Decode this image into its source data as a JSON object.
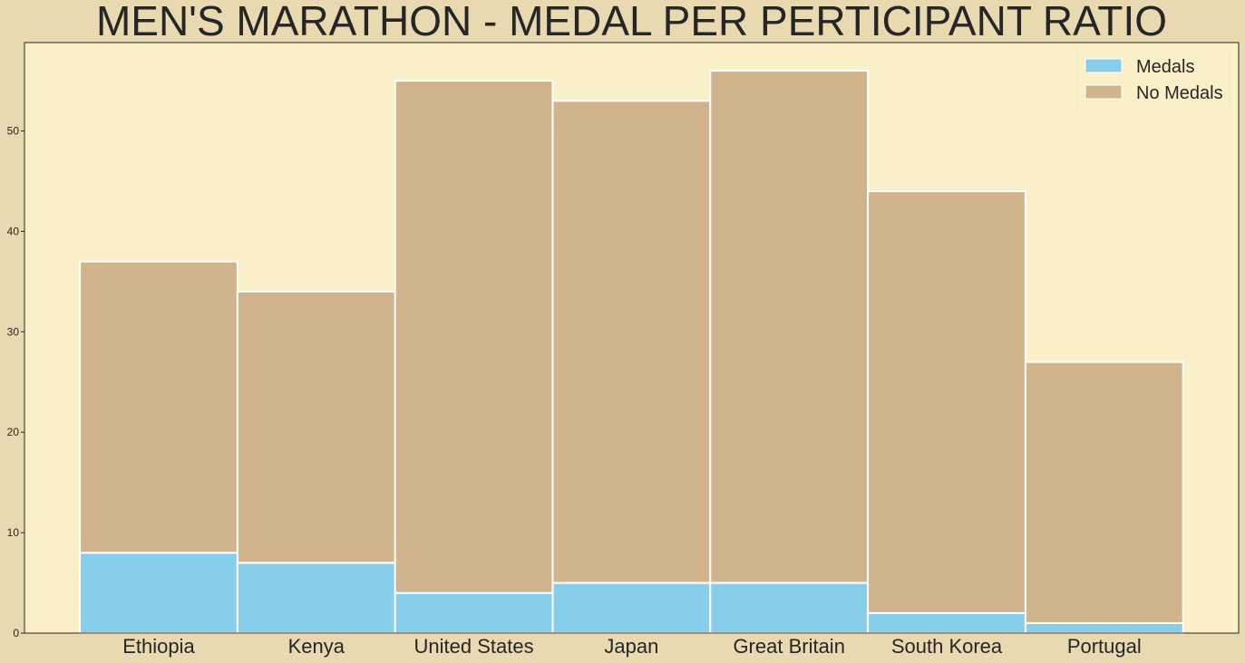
{
  "chart_data": {
    "type": "bar",
    "stacked": true,
    "title": "MEN'S MARATHON - MEDAL PER PERTICIPANT RATIO",
    "xlabel": "",
    "ylabel": "",
    "categories": [
      "Ethiopia",
      "Kenya",
      "United States",
      "Japan",
      "Great Britain",
      "South Korea",
      "Portugal"
    ],
    "series": [
      {
        "name": "Medals",
        "color": "#87ceeb",
        "values": [
          8,
          7,
          4,
          5,
          5,
          2,
          1
        ]
      },
      {
        "name": "No Medals",
        "color": "#d2b48c",
        "values": [
          29,
          27,
          51,
          48,
          51,
          42,
          26
        ]
      }
    ],
    "ylim": [
      0,
      58.8
    ],
    "yticks": [
      0,
      10,
      20,
      30,
      40,
      50
    ],
    "grid": false,
    "legend_position": "top-right",
    "background_color": "#e8d9b0",
    "plot_background_color": "#faf0c8",
    "edge_color": "#ffffff"
  }
}
